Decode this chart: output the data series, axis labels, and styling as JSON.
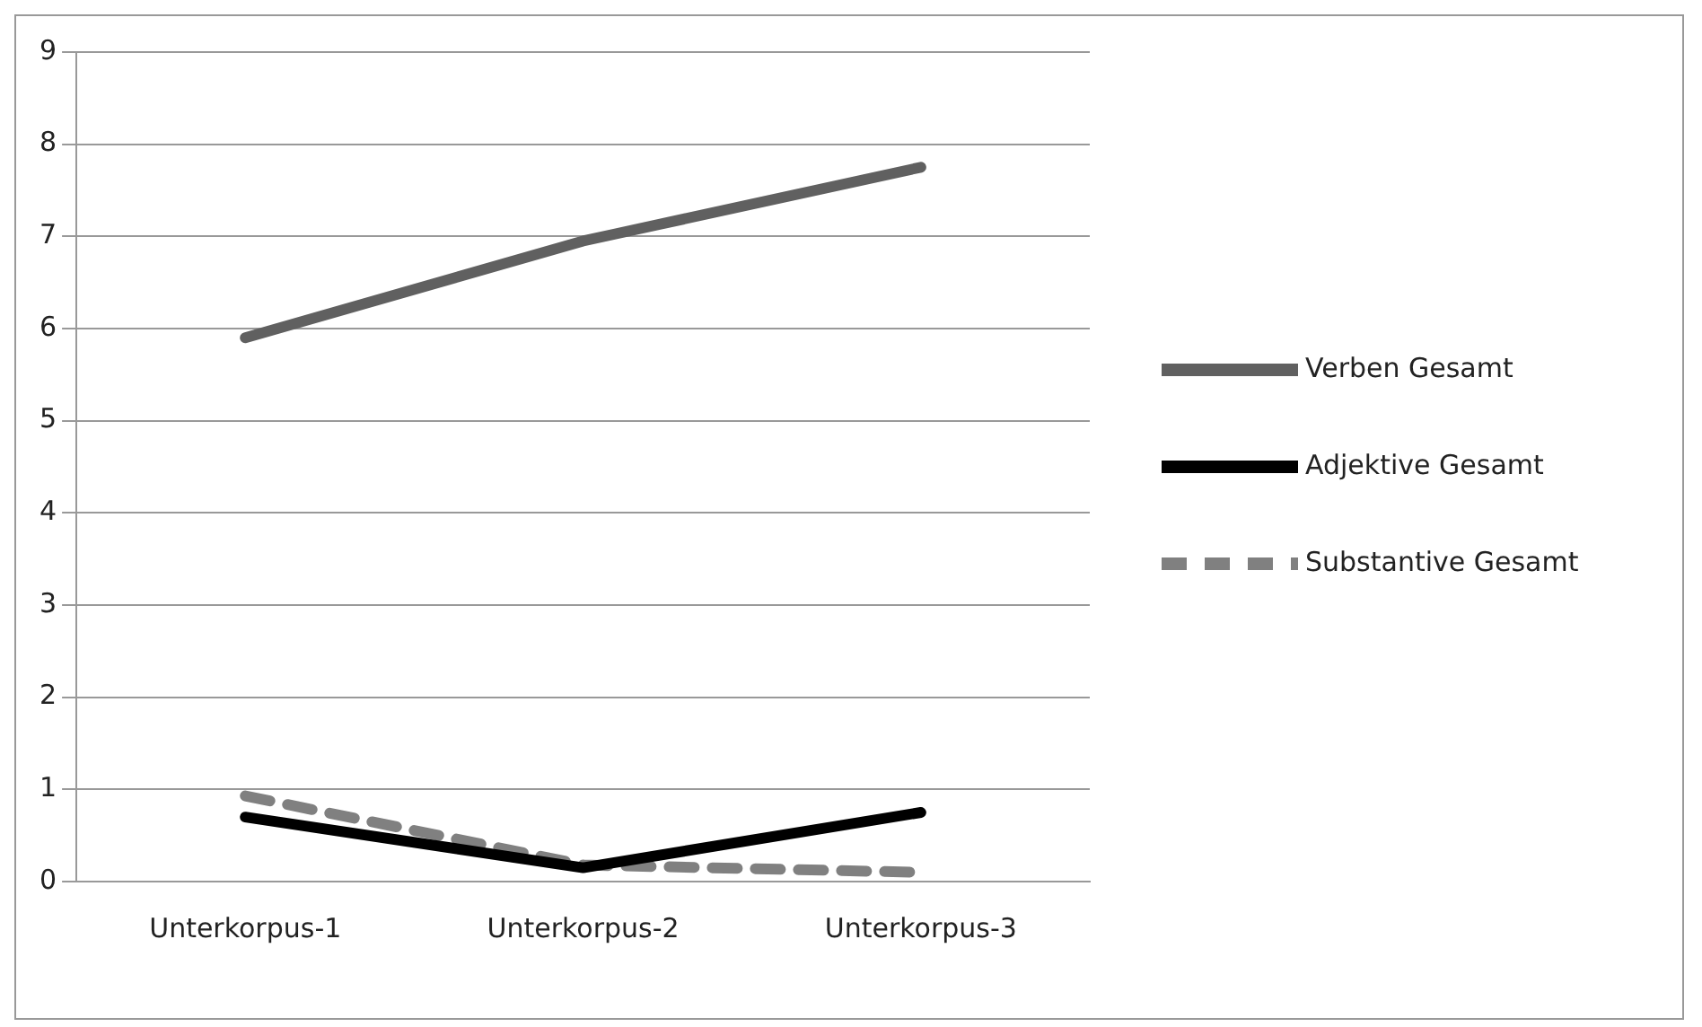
{
  "chart_data": {
    "type": "line",
    "categories": [
      "Unterkorpus-1",
      "Unterkorpus-2",
      "Unterkorpus-3"
    ],
    "series": [
      {
        "name": "Verben Gesamt",
        "color": "#606060",
        "values": [
          5.9,
          6.95,
          7.75
        ]
      },
      {
        "name": "Adjektive Gesamt",
        "color": "#000000",
        "values": [
          0.7,
          0.15,
          0.75
        ]
      },
      {
        "name": "Substantive Gesamt",
        "color": "#808080",
        "values": [
          0.93,
          0.18,
          0.1
        ],
        "line_style": "dashed"
      }
    ],
    "ylim": [
      0,
      9
    ],
    "yticks": [
      0,
      1,
      2,
      3,
      4,
      5,
      6,
      7,
      8,
      9
    ],
    "grid": "y",
    "legend": "right",
    "marker": "none"
  }
}
